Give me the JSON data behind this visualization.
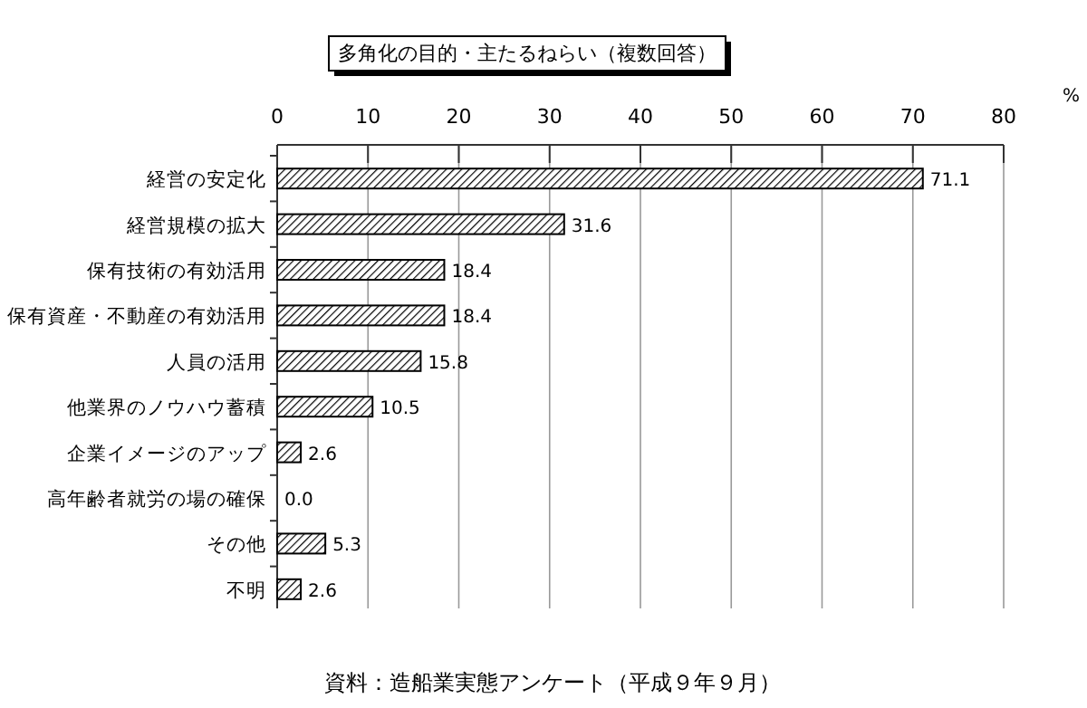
{
  "chart_data": {
    "type": "bar",
    "orientation": "horizontal",
    "title": "多角化の目的・主たるねらい（複数回答）",
    "xlabel": "%",
    "categories": [
      "経営の安定化",
      "経営規模の拡大",
      "保有技術の有効活用",
      "保有資産・不動産の有効活用",
      "人員の活用",
      "他業界のノウハウ蓄積",
      "企業イメージのアップ",
      "高年齢者就労の場の確保",
      "その他",
      "不明"
    ],
    "values": [
      71.1,
      31.6,
      18.4,
      18.4,
      15.8,
      10.5,
      2.6,
      0.0,
      5.3,
      2.6
    ],
    "value_labels": [
      "71.1",
      "31.6",
      "18.4",
      "18.4",
      "15.8",
      "10.5",
      "2.6",
      "0.0",
      "5.3",
      "2.6"
    ],
    "color": "#000000",
    "xlim": [
      0,
      80
    ],
    "xticks": [
      0,
      10,
      20,
      30,
      40,
      50,
      60,
      70,
      80
    ],
    "grid": "x",
    "annotations": [
      "資料：造船業実態アンケート（平成９年９月）"
    ]
  }
}
